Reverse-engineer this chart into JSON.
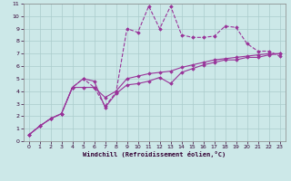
{
  "xlabel": "Windchill (Refroidissement éolien,°C)",
  "bg_color": "#cce8e8",
  "grid_color": "#aacccc",
  "line_color": "#993399",
  "xlim": [
    -0.5,
    23.5
  ],
  "ylim": [
    0,
    11
  ],
  "xticks": [
    0,
    1,
    2,
    3,
    4,
    5,
    6,
    7,
    8,
    9,
    10,
    11,
    12,
    13,
    14,
    15,
    16,
    17,
    18,
    19,
    20,
    21,
    22,
    23
  ],
  "yticks": [
    0,
    1,
    2,
    3,
    4,
    5,
    6,
    7,
    8,
    9,
    10,
    11
  ],
  "line1_x": [
    0,
    1,
    2,
    3,
    4,
    5,
    6,
    7,
    8,
    9,
    10,
    11,
    12,
    13,
    14,
    15,
    16,
    17,
    18,
    19,
    20,
    21,
    22,
    23
  ],
  "line1_y": [
    0.5,
    1.2,
    1.8,
    2.2,
    4.3,
    5.0,
    4.3,
    2.8,
    3.9,
    9.0,
    8.7,
    10.8,
    9.0,
    10.8,
    8.5,
    8.3,
    8.3,
    8.4,
    9.2,
    9.1,
    7.8,
    7.2,
    7.2,
    6.8
  ],
  "line2_x": [
    0,
    1,
    2,
    3,
    4,
    5,
    6,
    7,
    8,
    9,
    10,
    11,
    12,
    13,
    14,
    15,
    16,
    17,
    18,
    19,
    20,
    21,
    22,
    23
  ],
  "line2_y": [
    0.5,
    1.2,
    1.8,
    2.2,
    4.3,
    4.3,
    4.3,
    3.5,
    4.0,
    5.0,
    5.2,
    5.4,
    5.5,
    5.6,
    5.9,
    6.1,
    6.3,
    6.5,
    6.6,
    6.7,
    6.8,
    6.9,
    7.0,
    7.0
  ],
  "line3_x": [
    0,
    1,
    2,
    3,
    4,
    5,
    6,
    7,
    8,
    9,
    10,
    11,
    12,
    13,
    14,
    15,
    16,
    17,
    18,
    19,
    20,
    21,
    22,
    23
  ],
  "line3_y": [
    0.5,
    1.2,
    1.8,
    2.2,
    4.3,
    5.0,
    4.8,
    2.7,
    3.8,
    4.5,
    4.6,
    4.8,
    5.1,
    4.6,
    5.5,
    5.8,
    6.1,
    6.3,
    6.5,
    6.5,
    6.7,
    6.7,
    6.9,
    7.0
  ]
}
